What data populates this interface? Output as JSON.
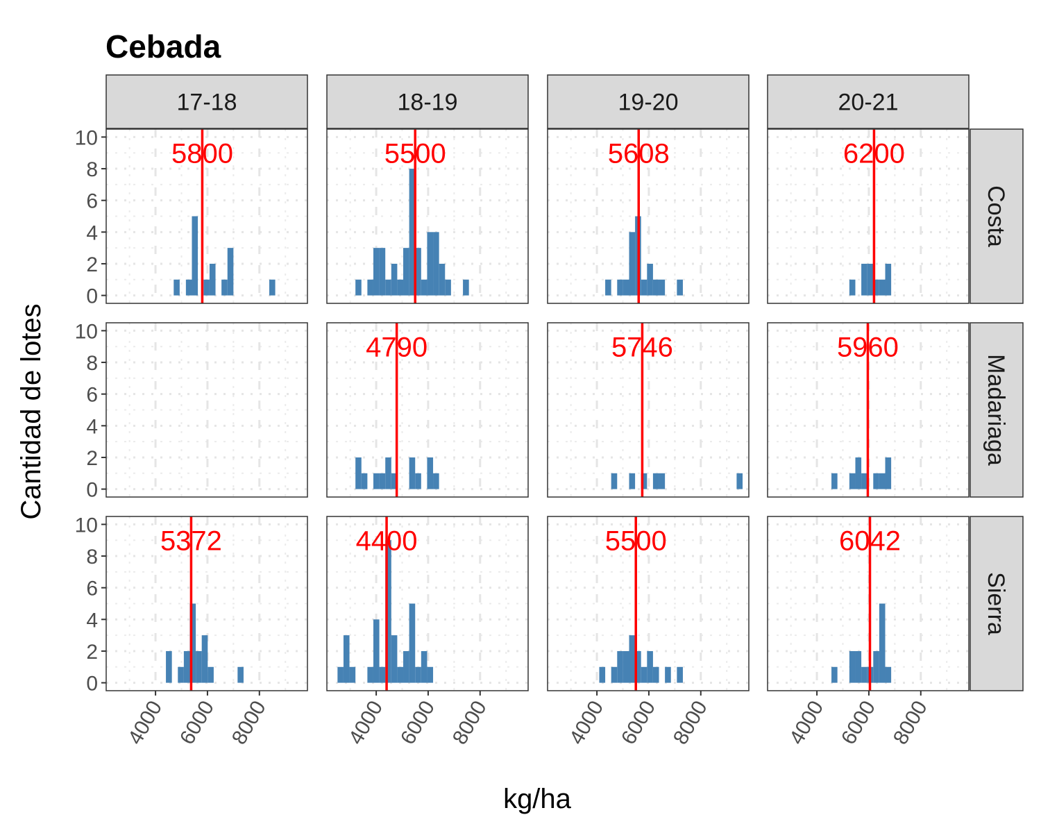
{
  "chart_data": {
    "type": "bar",
    "title": "Cebada",
    "xlabel": "kg/ha",
    "ylabel": "Cantidad de lotes",
    "column_facets": [
      "17-18",
      "18-19",
      "19-20",
      "20-21"
    ],
    "row_facets": [
      "Costa",
      "Madariaga",
      "Sierra"
    ],
    "xlim": [
      2100,
      9850
    ],
    "ylim": [
      0,
      10
    ],
    "x_ticks": [
      4000,
      6000,
      8000
    ],
    "x_tick_labels": [
      "4000",
      "6000",
      "8000"
    ],
    "y_ticks": [
      0,
      2,
      4,
      6,
      8,
      10
    ],
    "y_tick_labels": [
      "0",
      "2",
      "4",
      "6",
      "8",
      "10"
    ],
    "bin_width": 230,
    "grid": true,
    "bar_color": "#4682B4",
    "median_color": "#FF0000",
    "panels": [
      {
        "row": "Costa",
        "col": "17-18",
        "median": 5800,
        "median_label": "5800",
        "bins": [
          [
            4700,
            1
          ],
          [
            5170,
            1
          ],
          [
            5400,
            5
          ],
          [
            5850,
            1
          ],
          [
            6080,
            2
          ],
          [
            6540,
            1
          ],
          [
            6770,
            3
          ],
          [
            8380,
            1
          ]
        ]
      },
      {
        "row": "Costa",
        "col": "18-19",
        "median": 5500,
        "median_label": "5500",
        "bins": [
          [
            3200,
            1
          ],
          [
            3660,
            1
          ],
          [
            3890,
            3
          ],
          [
            4120,
            3
          ],
          [
            4350,
            1
          ],
          [
            4580,
            2
          ],
          [
            4810,
            1
          ],
          [
            5040,
            3
          ],
          [
            5270,
            8
          ],
          [
            5500,
            3
          ],
          [
            5730,
            1
          ],
          [
            5960,
            4
          ],
          [
            6190,
            4
          ],
          [
            6420,
            2
          ],
          [
            6650,
            1
          ],
          [
            7340,
            1
          ]
        ]
      },
      {
        "row": "Costa",
        "col": "19-20",
        "median": 5608,
        "median_label": "5608",
        "bins": [
          [
            4320,
            1
          ],
          [
            4780,
            1
          ],
          [
            5010,
            1
          ],
          [
            5240,
            4
          ],
          [
            5470,
            5
          ],
          [
            5700,
            1
          ],
          [
            5930,
            2
          ],
          [
            6160,
            1
          ],
          [
            6390,
            1
          ],
          [
            7080,
            1
          ]
        ]
      },
      {
        "row": "Costa",
        "col": "20-21",
        "median": 6200,
        "median_label": "6200",
        "bins": [
          [
            5250,
            1
          ],
          [
            5710,
            2
          ],
          [
            5940,
            2
          ],
          [
            6170,
            1
          ],
          [
            6400,
            1
          ],
          [
            6630,
            2
          ]
        ]
      },
      {
        "row": "Madariaga",
        "col": "17-18",
        "median": null,
        "median_label": "",
        "bins": []
      },
      {
        "row": "Madariaga",
        "col": "18-19",
        "median": 4790,
        "median_label": "4790",
        "bins": [
          [
            3200,
            2
          ],
          [
            3430,
            1
          ],
          [
            3890,
            1
          ],
          [
            4120,
            1
          ],
          [
            4350,
            2
          ],
          [
            4580,
            1
          ],
          [
            5270,
            2
          ],
          [
            5500,
            1
          ],
          [
            5960,
            2
          ],
          [
            6190,
            1
          ]
        ]
      },
      {
        "row": "Madariaga",
        "col": "19-20",
        "median": 5746,
        "median_label": "5746",
        "bins": [
          [
            4550,
            1
          ],
          [
            5240,
            1
          ],
          [
            5700,
            1
          ],
          [
            6160,
            1
          ],
          [
            6390,
            1
          ],
          [
            9380,
            1
          ]
        ]
      },
      {
        "row": "Madariaga",
        "col": "20-21",
        "median": 5960,
        "median_label": "5960",
        "bins": [
          [
            4560,
            1
          ],
          [
            5250,
            1
          ],
          [
            5480,
            2
          ],
          [
            5710,
            1
          ],
          [
            6170,
            1
          ],
          [
            6400,
            1
          ],
          [
            6630,
            2
          ]
        ]
      },
      {
        "row": "Sierra",
        "col": "17-18",
        "median": 5372,
        "median_label": "5372",
        "bins": [
          [
            4400,
            2
          ],
          [
            4860,
            1
          ],
          [
            5090,
            2
          ],
          [
            5320,
            5
          ],
          [
            5550,
            2
          ],
          [
            5780,
            3
          ],
          [
            6010,
            1
          ],
          [
            7160,
            1
          ]
        ]
      },
      {
        "row": "Sierra",
        "col": "18-19",
        "median": 4400,
        "median_label": "4400",
        "bins": [
          [
            2510,
            1
          ],
          [
            2740,
            3
          ],
          [
            2970,
            1
          ],
          [
            3660,
            1
          ],
          [
            3890,
            4
          ],
          [
            4120,
            1
          ],
          [
            4350,
            9
          ],
          [
            4580,
            3
          ],
          [
            4810,
            1
          ],
          [
            5040,
            2
          ],
          [
            5270,
            5
          ],
          [
            5500,
            1
          ],
          [
            5730,
            2
          ],
          [
            5960,
            1
          ]
        ]
      },
      {
        "row": "Sierra",
        "col": "19-20",
        "median": 5500,
        "median_label": "5500",
        "bins": [
          [
            4090,
            1
          ],
          [
            4550,
            1
          ],
          [
            4780,
            2
          ],
          [
            5010,
            2
          ],
          [
            5240,
            3
          ],
          [
            5470,
            2
          ],
          [
            5700,
            1
          ],
          [
            5930,
            2
          ],
          [
            6160,
            1
          ],
          [
            6620,
            1
          ],
          [
            7080,
            1
          ]
        ]
      },
      {
        "row": "Sierra",
        "col": "20-21",
        "median": 6042,
        "median_label": "6042",
        "bins": [
          [
            4560,
            1
          ],
          [
            5250,
            2
          ],
          [
            5480,
            2
          ],
          [
            5710,
            1
          ],
          [
            5940,
            1
          ],
          [
            6170,
            2
          ],
          [
            6400,
            5
          ],
          [
            6630,
            1
          ]
        ]
      }
    ]
  }
}
